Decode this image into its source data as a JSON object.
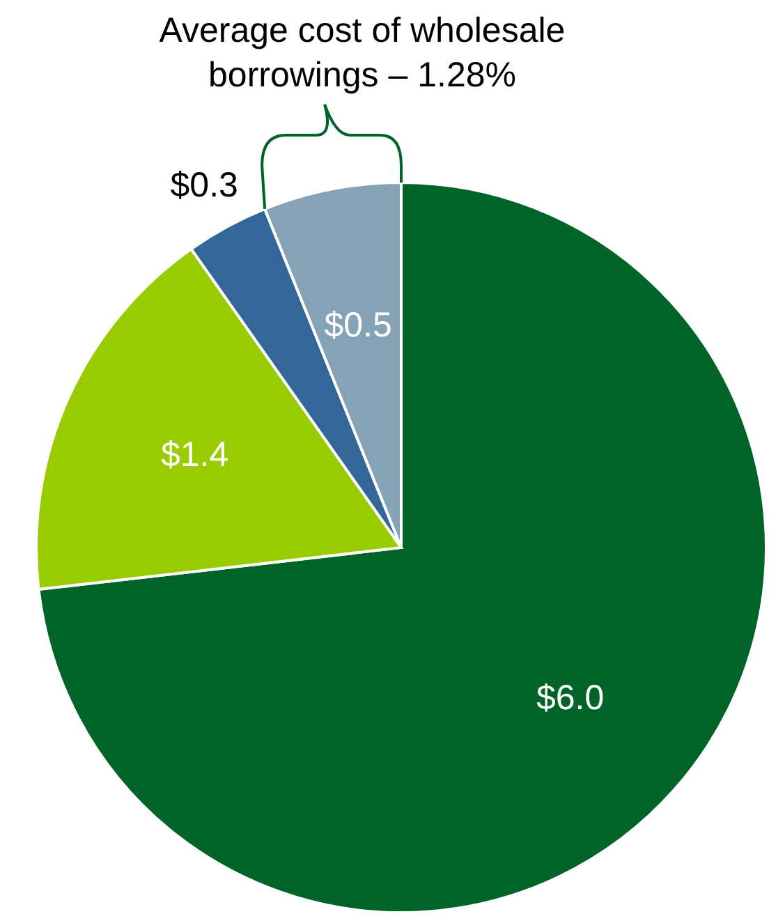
{
  "chart_data": {
    "type": "pie",
    "categories": [
      null,
      null,
      null,
      null
    ],
    "values": [
      6.0,
      1.4,
      0.3,
      0.5
    ],
    "value_labels": [
      "$6.0",
      "$1.4",
      "$0.3",
      "$0.5"
    ],
    "colors": [
      "#006428",
      "#99cc00",
      "#336699",
      "#86a2b6"
    ],
    "annotations": [
      "Average cost of wholesale borrowings – 1.28%"
    ]
  }
}
